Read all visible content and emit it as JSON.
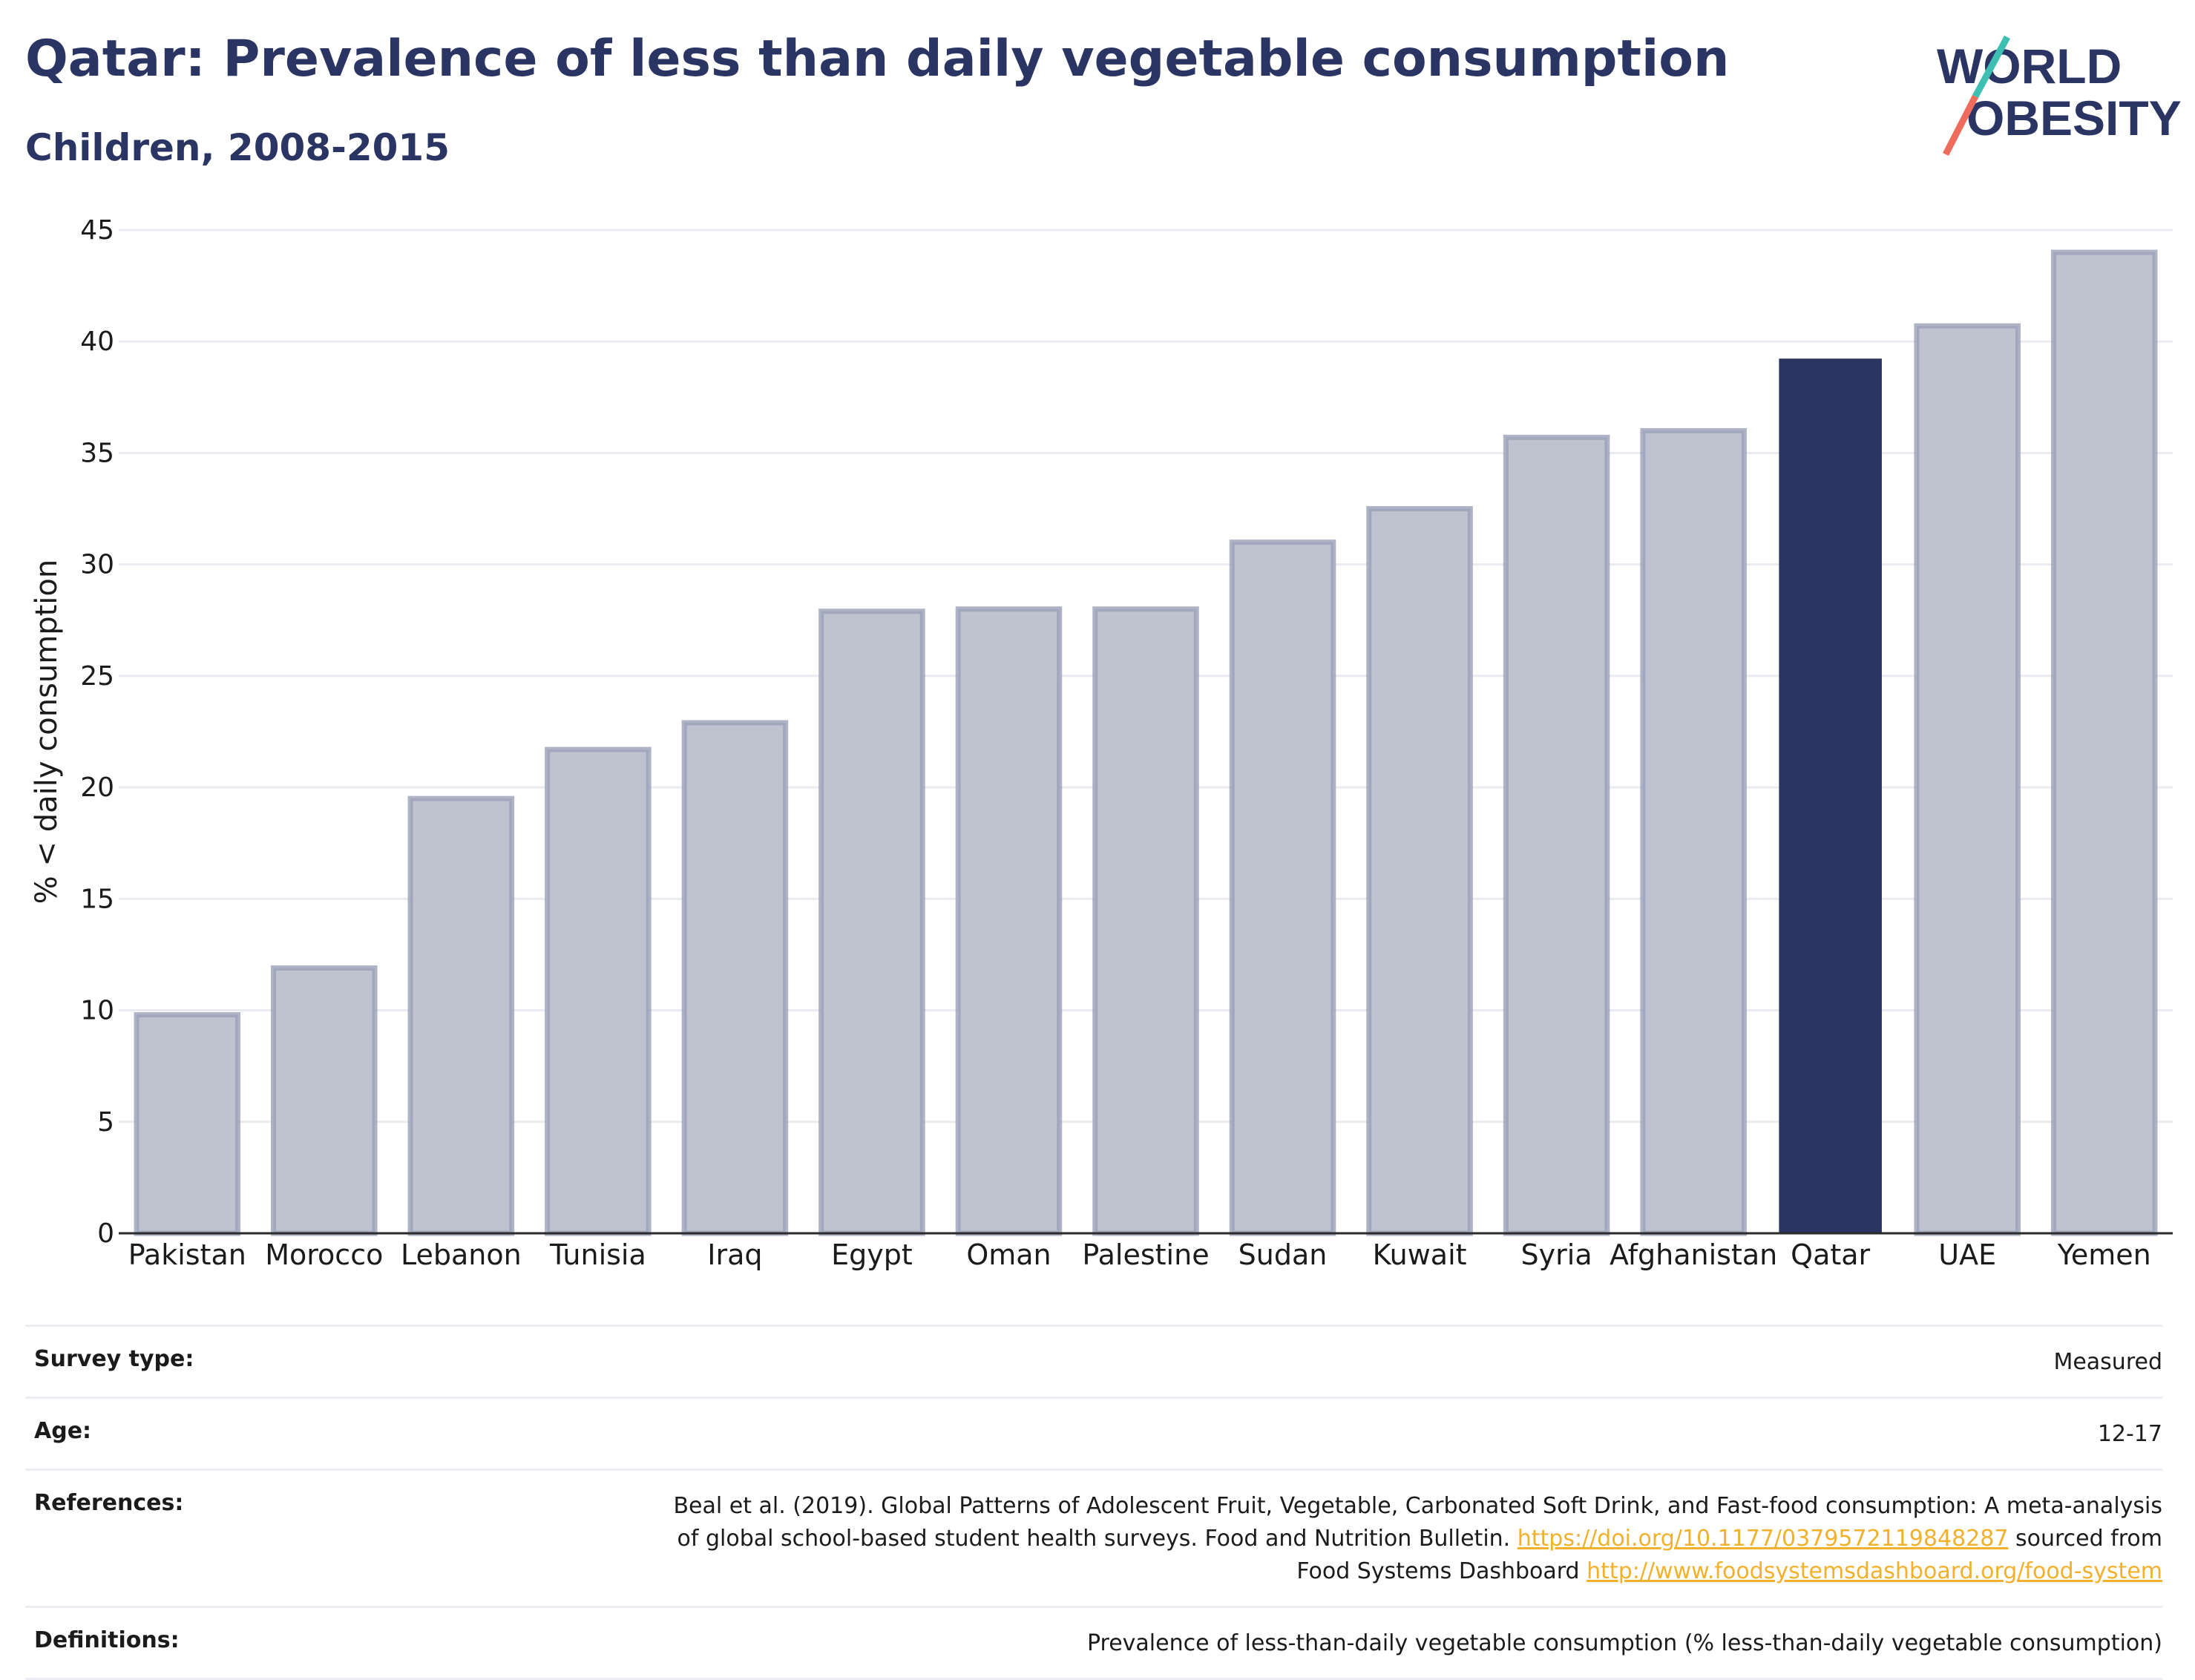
{
  "title": "Qatar: Prevalence of less than daily vegetable consumption",
  "subtitle": "Children, 2008-2015",
  "logo": {
    "line1": "WORLD",
    "line2": "OBESITY"
  },
  "colors": {
    "highlight": "#2a3561",
    "bar_fill": "#bfc3d0",
    "bar_stroke": "#9aa0b6",
    "title": "#2b3563",
    "link": "#f2b12c"
  },
  "chart_data": {
    "type": "bar",
    "title": "Qatar: Prevalence of less than daily vegetable consumption",
    "subtitle": "Children, 2008-2015",
    "xlabel": "",
    "ylabel": "% < daily consumption",
    "ylim": [
      0,
      45
    ],
    "yticks": [
      0,
      5,
      10,
      15,
      20,
      25,
      30,
      35,
      40,
      45
    ],
    "grid": true,
    "highlight": "Qatar",
    "categories": [
      "Pakistan",
      "Morocco",
      "Lebanon",
      "Tunisia",
      "Iraq",
      "Egypt",
      "Oman",
      "Palestine",
      "Sudan",
      "Kuwait",
      "Syria",
      "Afghanistan",
      "Qatar",
      "UAE",
      "Yemen"
    ],
    "values": [
      9.8,
      11.9,
      19.5,
      21.7,
      22.9,
      27.9,
      28.0,
      28.0,
      31.0,
      32.5,
      35.7,
      36.0,
      39.2,
      40.7,
      44.0
    ]
  },
  "meta": {
    "survey_type": {
      "label": "Survey type:",
      "value": "Measured"
    },
    "age": {
      "label": "Age:",
      "value": "12-17"
    },
    "references": {
      "label": "References:",
      "line1": "Beal et al. (2019). Global Patterns of Adolescent Fruit, Vegetable, Carbonated Soft Drink, and Fast-food consumption: A meta-analysis",
      "line2_text": "of global school-based student health surveys. Food and Nutrition Bulletin.",
      "line2_link": "https://doi.org/10.1177/0379572119848287",
      "line2_after": "sourced from",
      "line3_text": "Food Systems Dashboard",
      "line3_link": "http://www.foodsystemsdashboard.org/food-system"
    },
    "definitions": {
      "label": "Definitions:",
      "value": "Prevalence of less-than-daily vegetable consumption (% less-than-daily vegetable consumption)"
    }
  }
}
